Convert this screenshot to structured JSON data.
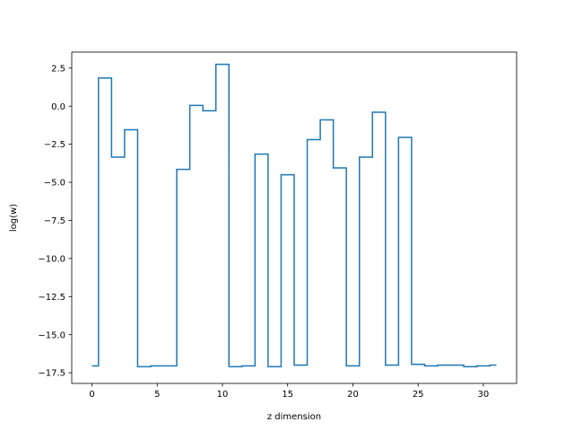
{
  "chart_data": {
    "type": "line",
    "drawstyle": "steps-mid",
    "xlabel": "z dimension",
    "ylabel": "log(w)",
    "xlim": [
      -1.55,
      32.55
    ],
    "ylim": [
      -18.2,
      3.55
    ],
    "xticks": [
      0,
      5,
      10,
      15,
      20,
      25,
      30
    ],
    "xtick_labels": [
      "0",
      "5",
      "10",
      "15",
      "20",
      "25",
      "30"
    ],
    "yticks": [
      2.5,
      0.0,
      -2.5,
      -5.0,
      -7.5,
      -10.0,
      -12.5,
      -15.0,
      -17.5
    ],
    "ytick_labels": [
      "2.5",
      "0.0",
      "−2.5",
      "−5.0",
      "−7.5",
      "−10.0",
      "−12.5",
      "−15.0",
      "−17.5"
    ],
    "grid": false,
    "series": [
      {
        "color": "#1f77b4",
        "x": [
          0,
          1,
          2,
          3,
          4,
          5,
          6,
          7,
          8,
          9,
          10,
          11,
          12,
          13,
          14,
          15,
          16,
          17,
          18,
          19,
          20,
          21,
          22,
          23,
          24,
          25,
          26,
          27,
          28,
          29,
          30,
          31
        ],
        "values": [
          -17.05,
          1.85,
          -3.35,
          -1.55,
          -17.1,
          -17.05,
          -17.05,
          -4.15,
          0.05,
          -0.3,
          2.75,
          -17.1,
          -17.05,
          -3.15,
          -17.1,
          -4.5,
          -17.0,
          -2.2,
          -0.9,
          -4.05,
          -17.05,
          -3.35,
          -0.4,
          -17.0,
          -2.05,
          -16.95,
          -17.05,
          -17.0,
          -17.0,
          -17.1,
          -17.05,
          -17.0
        ]
      }
    ]
  }
}
